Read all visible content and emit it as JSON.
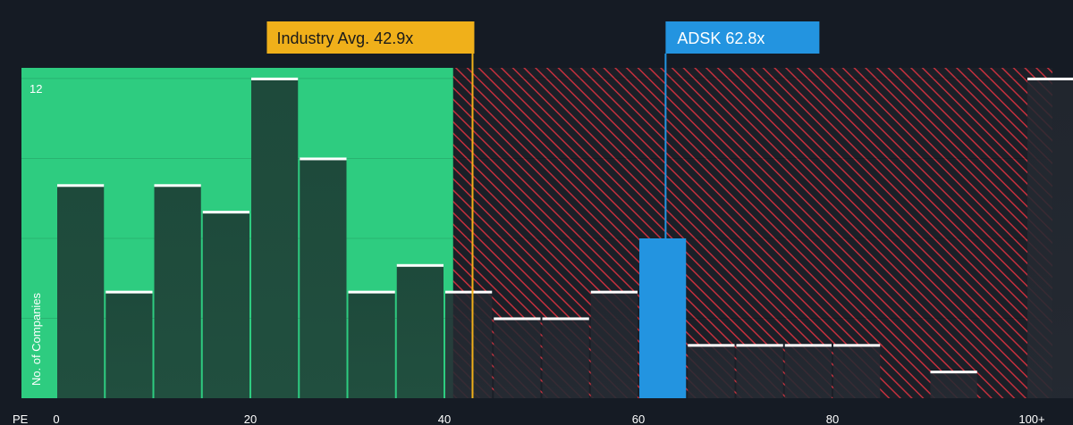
{
  "chart_data": {
    "type": "bar",
    "xlabel": "PE",
    "ylabel": "No. of Companies",
    "x_ticks": [
      "0",
      "20",
      "40",
      "60",
      "80",
      "100+"
    ],
    "x_tick_values": [
      0,
      20,
      40,
      60,
      80,
      100
    ],
    "y_ticks": [
      "12"
    ],
    "y_tick_values": [
      12
    ],
    "ylim": [
      0,
      12.4
    ],
    "bin_width": 5,
    "bins": [
      {
        "start": 0,
        "value": 8
      },
      {
        "start": 5,
        "value": 4
      },
      {
        "start": 10,
        "value": 8
      },
      {
        "start": 15,
        "value": 7
      },
      {
        "start": 20,
        "value": 12
      },
      {
        "start": 25,
        "value": 9
      },
      {
        "start": 30,
        "value": 4
      },
      {
        "start": 35,
        "value": 5
      },
      {
        "start": 40,
        "value": 4
      },
      {
        "start": 45,
        "value": 3
      },
      {
        "start": 50,
        "value": 3
      },
      {
        "start": 55,
        "value": 4
      },
      {
        "start": 60,
        "value": 6,
        "highlight": true
      },
      {
        "start": 65,
        "value": 2
      },
      {
        "start": 70,
        "value": 2
      },
      {
        "start": 75,
        "value": 2
      },
      {
        "start": 80,
        "value": 2
      },
      {
        "start": 85,
        "value": 0
      },
      {
        "start": 90,
        "value": 1
      },
      {
        "start": 95,
        "value": 0
      },
      {
        "start": 100,
        "value": 12
      }
    ],
    "industry_avg": {
      "label": "Industry Avg. 42.9x",
      "value": 42.9
    },
    "company": {
      "label": "ADSK 62.8x",
      "value": 62.8
    },
    "fair_region_end": 41,
    "colors": {
      "background": "#151b24",
      "fair_region": "#2ecc80",
      "bar_fill": "#1f4a3b",
      "bar_top": "#ffffff",
      "highlight_bar": "#2394e0",
      "hatch_line": "#c4303d",
      "industry_line": "#f0b01a",
      "company_line": "#2394e0"
    }
  }
}
